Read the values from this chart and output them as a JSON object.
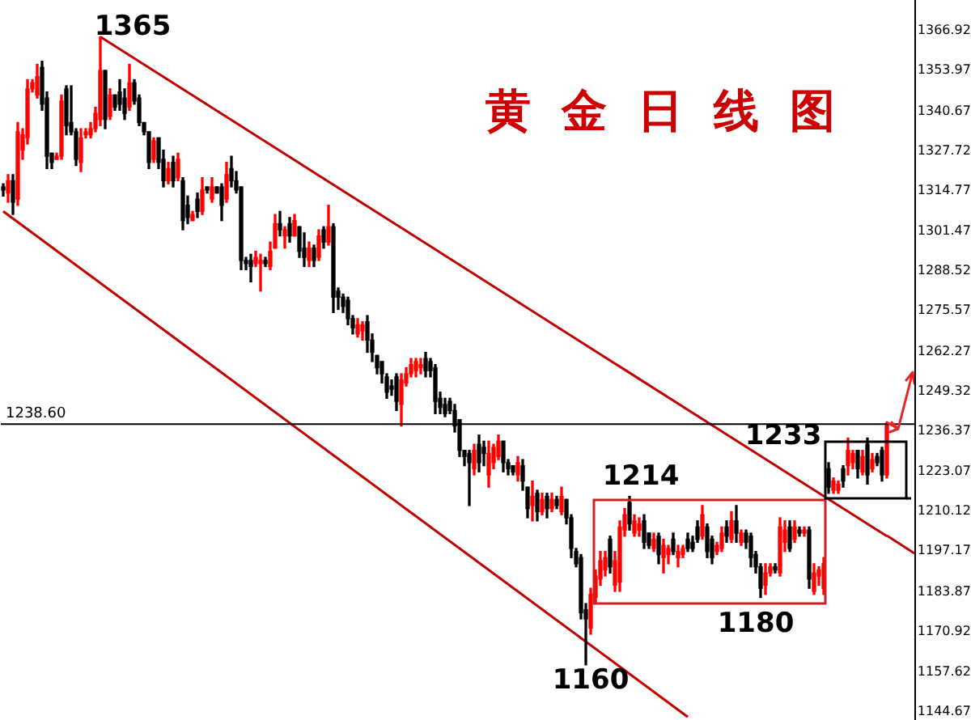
{
  "chart_data": {
    "type": "candlestick",
    "title": "黄金日线图",
    "categories": [
      null,
      null,
      null,
      null,
      null,
      null,
      null,
      null,
      null,
      null,
      null,
      null,
      null,
      null,
      null,
      null,
      null,
      null,
      null,
      null,
      null,
      null,
      null,
      null,
      null,
      null,
      null,
      null,
      null,
      null,
      null,
      null,
      null,
      null,
      null,
      null,
      null,
      null,
      null,
      null,
      null,
      null,
      null,
      null,
      null,
      null,
      null,
      null,
      null,
      null,
      null,
      null,
      null,
      null,
      null,
      null,
      null,
      null,
      null,
      null,
      null,
      null,
      null,
      null,
      null,
      null,
      null,
      null,
      null,
      null,
      null,
      null,
      null,
      null,
      null,
      null,
      null,
      null,
      null,
      null,
      null,
      null,
      null,
      null,
      null,
      null,
      null,
      null,
      null,
      null,
      null,
      null,
      null,
      null,
      null,
      null,
      null,
      null,
      null,
      null,
      null,
      null,
      null,
      null,
      null,
      null,
      null,
      null,
      null,
      null,
      null,
      null,
      null,
      null,
      null,
      null,
      null,
      null,
      null,
      null,
      null,
      null,
      null,
      null,
      null,
      null,
      null,
      null,
      null,
      null,
      null,
      null,
      null,
      null,
      null,
      null,
      null,
      null,
      null,
      null,
      null,
      null,
      null,
      null,
      null,
      null,
      null,
      null,
      null,
      null,
      null,
      null,
      null,
      null,
      null,
      null,
      null,
      null,
      null,
      null,
      null,
      null,
      null,
      null,
      null,
      null,
      null,
      null,
      null,
      null,
      null,
      null,
      null,
      null,
      null,
      null,
      null,
      null,
      null,
      null,
      null,
      null,
      null
    ],
    "ohlc": [
      [
        1316,
        1317,
        1313,
        1315
      ],
      [
        1314,
        1320,
        1311,
        1318
      ],
      [
        1318,
        1320,
        1307,
        1311
      ],
      [
        1312,
        1337,
        1310,
        1334
      ],
      [
        1328,
        1335,
        1325,
        1333
      ],
      [
        1332,
        1351,
        1330,
        1348
      ],
      [
        1348,
        1351,
        1347,
        1350
      ],
      [
        1346,
        1356,
        1345,
        1352
      ],
      [
        1355,
        1357,
        1341,
        1343
      ],
      [
        1345,
        1347,
        1322,
        1326
      ],
      [
        1327,
        1327,
        1322,
        1324
      ],
      [
        1325,
        1327,
        1325,
        1326
      ],
      [
        1326,
        1346,
        1325,
        1344
      ],
      [
        1348,
        1349,
        1333,
        1336
      ],
      [
        1337,
        1349,
        1333,
        1334
      ],
      [
        1334,
        1335,
        1323,
        1325
      ],
      [
        1324,
        1335,
        1321,
        1332
      ],
      [
        1333,
        1335,
        1332,
        1334
      ],
      [
        1333,
        1337,
        1332,
        1335
      ],
      [
        1335,
        1342,
        1334,
        1340
      ],
      [
        1338,
        1365,
        1336,
        1354
      ],
      [
        1354,
        1354,
        1335,
        1338
      ],
      [
        1339,
        1348,
        1338,
        1346
      ],
      [
        1346,
        1346,
        1341,
        1342
      ],
      [
        1347,
        1351,
        1341,
        1343
      ],
      [
        1345,
        1348,
        1338,
        1340
      ],
      [
        1342,
        1356,
        1341,
        1350
      ],
      [
        1350,
        1351,
        1343,
        1344
      ],
      [
        1345,
        1346,
        1336,
        1337
      ],
      [
        1337,
        1337,
        1333,
        1334
      ],
      [
        1334,
        1334,
        1322,
        1324
      ],
      [
        1325,
        1332,
        1324,
        1331
      ],
      [
        1332,
        1332,
        1322,
        1324
      ],
      [
        1325,
        1328,
        1316,
        1318
      ],
      [
        1318,
        1324,
        1317,
        1322
      ],
      [
        1324,
        1326,
        1316,
        1318
      ],
      [
        1319,
        1327,
        1318,
        1325
      ],
      [
        1318,
        1319,
        1302,
        1305
      ],
      [
        1310,
        1313,
        1304,
        1306
      ],
      [
        1305,
        1308,
        1305,
        1307
      ],
      [
        1312,
        1314,
        1306,
        1308
      ],
      [
        1308,
        1319,
        1307,
        1315
      ],
      [
        1316,
        1316,
        1314,
        1315
      ],
      [
        1312,
        1319,
        1311,
        1316
      ],
      [
        1316,
        1316,
        1314,
        1314
      ],
      [
        1316,
        1317,
        1305,
        1310
      ],
      [
        1312,
        1324,
        1311,
        1320
      ],
      [
        1322,
        1326,
        1316,
        1318
      ],
      [
        1318,
        1321,
        1314,
        1315
      ],
      [
        1316,
        1316,
        1289,
        1292
      ],
      [
        1292,
        1293,
        1289,
        1291
      ],
      [
        1292,
        1294,
        1285,
        1290
      ],
      [
        1291,
        1295,
        1290,
        1293
      ],
      [
        1291,
        1294,
        1282,
        1292
      ],
      [
        1292,
        1293,
        1290,
        1291
      ],
      [
        1290,
        1298,
        1289,
        1295
      ],
      [
        1296,
        1307,
        1296,
        1304
      ],
      [
        1304,
        1308,
        1300,
        1302
      ],
      [
        1300,
        1303,
        1296,
        1302
      ],
      [
        1304,
        1306,
        1298,
        1300
      ],
      [
        1300,
        1307,
        1300,
        1305
      ],
      [
        1303,
        1303,
        1293,
        1295
      ],
      [
        1296,
        1301,
        1290,
        1293
      ],
      [
        1292,
        1298,
        1290,
        1296
      ],
      [
        1296,
        1297,
        1290,
        1292
      ],
      [
        1293,
        1302,
        1292,
        1300
      ],
      [
        1302,
        1303,
        1296,
        1298
      ],
      [
        1298,
        1310,
        1297,
        1303
      ],
      [
        1303,
        1304,
        1275,
        1280
      ],
      [
        1282,
        1283,
        1276,
        1280
      ],
      [
        1280,
        1281,
        1275,
        1277
      ],
      [
        1279,
        1280,
        1271,
        1273
      ],
      [
        1273,
        1274,
        1268,
        1270
      ],
      [
        1268,
        1273,
        1267,
        1271
      ],
      [
        1269,
        1272,
        1266,
        1271
      ],
      [
        1272,
        1274,
        1262,
        1266
      ],
      [
        1266,
        1268,
        1259,
        1262
      ],
      [
        1261,
        1261,
        1255,
        1257
      ],
      [
        1259,
        1259,
        1252,
        1255
      ],
      [
        1254,
        1255,
        1247,
        1249
      ],
      [
        1251,
        1253,
        1248,
        1250
      ],
      [
        1254,
        1255,
        1243,
        1246
      ],
      [
        1245,
        1255,
        1238,
        1253
      ],
      [
        1252,
        1257,
        1251,
        1255
      ],
      [
        1255,
        1260,
        1254,
        1258
      ],
      [
        1256,
        1260,
        1254,
        1259
      ],
      [
        1257,
        1260,
        1255,
        1258
      ],
      [
        1260,
        1262,
        1254,
        1256
      ],
      [
        1259,
        1260,
        1254,
        1256
      ],
      [
        1257,
        1258,
        1242,
        1246
      ],
      [
        1247,
        1249,
        1242,
        1244
      ],
      [
        1245,
        1247,
        1241,
        1242
      ],
      [
        1246,
        1247,
        1242,
        1243
      ],
      [
        1243,
        1245,
        1236,
        1238
      ],
      [
        1240,
        1240,
        1228,
        1230
      ],
      [
        1230,
        1230,
        1225,
        1228
      ],
      [
        1229,
        1230,
        1212,
        1226
      ],
      [
        1224,
        1232,
        1222,
        1230
      ],
      [
        1232,
        1235,
        1223,
        1226
      ],
      [
        1231,
        1233,
        1225,
        1229
      ],
      [
        1222,
        1233,
        1218,
        1229
      ],
      [
        1226,
        1232,
        1224,
        1231
      ],
      [
        1228,
        1235,
        1227,
        1233
      ],
      [
        1233,
        1233,
        1223,
        1226
      ],
      [
        1226,
        1227,
        1222,
        1224
      ],
      [
        1225,
        1225,
        1222,
        1223
      ],
      [
        1222,
        1228,
        1220,
        1226
      ],
      [
        1225,
        1227,
        1217,
        1220
      ],
      [
        1218,
        1218,
        1208,
        1211
      ],
      [
        1212,
        1220,
        1207,
        1215
      ],
      [
        1216,
        1217,
        1207,
        1210
      ],
      [
        1210,
        1216,
        1209,
        1214
      ],
      [
        1215,
        1216,
        1208,
        1211
      ],
      [
        1211,
        1216,
        1210,
        1214
      ],
      [
        1214,
        1215,
        1211,
        1212
      ],
      [
        1210,
        1218,
        1209,
        1215
      ],
      [
        1214,
        1214,
        1206,
        1208
      ],
      [
        1208,
        1209,
        1195,
        1198
      ],
      [
        1197,
        1198,
        1192,
        1193
      ],
      [
        1195,
        1196,
        1175,
        1177
      ],
      [
        1178,
        1180,
        1160,
        1175
      ],
      [
        1172,
        1185,
        1170,
        1183
      ],
      [
        1182,
        1191,
        1180,
        1189
      ],
      [
        1188,
        1197,
        1186,
        1194
      ],
      [
        1191,
        1197,
        1189,
        1195
      ],
      [
        1201,
        1202,
        1190,
        1192
      ],
      [
        1186,
        1197,
        1184,
        1194
      ],
      [
        1187,
        1207,
        1184,
        1205
      ],
      [
        1204,
        1211,
        1202,
        1209
      ],
      [
        1213,
        1215,
        1204,
        1206
      ],
      [
        1203,
        1209,
        1202,
        1207
      ],
      [
        1204,
        1208,
        1202,
        1206
      ],
      [
        1207,
        1209,
        1198,
        1200
      ],
      [
        1203,
        1203,
        1198,
        1199
      ],
      [
        1198,
        1203,
        1197,
        1201
      ],
      [
        1202,
        1203,
        1193,
        1196
      ],
      [
        1195,
        1201,
        1190,
        1199
      ],
      [
        1196,
        1199,
        1193,
        1198
      ],
      [
        1201,
        1203,
        1196,
        1197
      ],
      [
        1195,
        1199,
        1192,
        1197
      ],
      [
        1196,
        1199,
        1195,
        1198
      ],
      [
        1201,
        1203,
        1197,
        1198
      ],
      [
        1200,
        1202,
        1197,
        1198
      ],
      [
        1205,
        1207,
        1200,
        1201
      ],
      [
        1202,
        1212,
        1201,
        1209
      ],
      [
        1205,
        1206,
        1195,
        1197
      ],
      [
        1201,
        1202,
        1193,
        1195
      ],
      [
        1197,
        1200,
        1196,
        1199
      ],
      [
        1198,
        1205,
        1197,
        1203
      ],
      [
        1205,
        1207,
        1200,
        1202
      ],
      [
        1201,
        1210,
        1200,
        1207
      ],
      [
        1207,
        1212,
        1200,
        1203
      ],
      [
        1200,
        1204,
        1199,
        1203
      ],
      [
        1203,
        1204,
        1198,
        1200
      ],
      [
        1202,
        1203,
        1192,
        1195
      ],
      [
        1196,
        1197,
        1190,
        1192
      ],
      [
        1192,
        1193,
        1182,
        1185
      ],
      [
        1186,
        1193,
        1183,
        1190
      ],
      [
        1190,
        1193,
        1189,
        1192
      ],
      [
        1192,
        1193,
        1190,
        1191
      ],
      [
        1190,
        1208,
        1189,
        1205
      ],
      [
        1200,
        1207,
        1197,
        1204
      ],
      [
        1205,
        1207,
        1197,
        1198
      ],
      [
        1201,
        1207,
        1200,
        1205
      ],
      [
        1204,
        1205,
        1202,
        1203
      ],
      [
        1203,
        1205,
        1202,
        1204
      ],
      [
        1204,
        1205,
        1185,
        1188
      ],
      [
        1184,
        1193,
        1183,
        1190
      ],
      [
        1189,
        1192,
        1186,
        1191
      ],
      [
        1185,
        1195,
        1183,
        1193
      ],
      [
        1224,
        1226,
        1216,
        1218
      ],
      [
        1217,
        1221,
        1216,
        1220
      ],
      [
        1217,
        1220,
        1216,
        1219
      ],
      [
        1224,
        1225,
        1218,
        1220
      ],
      [
        1225,
        1234,
        1222,
        1230
      ],
      [
        1226,
        1230,
        1224,
        1229
      ],
      [
        1230,
        1230,
        1221,
        1224
      ],
      [
        1223,
        1230,
        1222,
        1228
      ],
      [
        1232,
        1234,
        1219,
        1222
      ],
      [
        1224,
        1229,
        1223,
        1227
      ],
      [
        1228,
        1229,
        1225,
        1226
      ],
      [
        1230,
        1231,
        1220,
        1222
      ],
      [
        1222,
        1239,
        1221,
        1238.6
      ]
    ],
    "colors": [
      "#000000",
      "#ff0000",
      "#000000",
      "#ff0000",
      "#ff0000",
      "#ff0000",
      "#ff0000",
      "#ff0000",
      "#000000",
      "#000000",
      "#000000",
      "#ff0000",
      "#ff0000",
      "#000000",
      "#000000",
      "#000000",
      "#ff0000",
      "#ff0000",
      "#ff0000",
      "#ff0000",
      "#ff0000",
      "#000000",
      "#ff0000",
      "#000000",
      "#000000",
      "#000000",
      "#ff0000",
      "#000000",
      "#000000",
      "#000000",
      "#000000",
      "#ff0000",
      "#000000",
      "#000000",
      "#ff0000",
      "#000000",
      "#ff0000",
      "#000000",
      "#000000",
      "#ff0000",
      "#000000",
      "#ff0000",
      "#000000",
      "#ff0000",
      "#000000",
      "#000000",
      "#ff0000",
      "#000000",
      "#000000",
      "#000000",
      "#000000",
      "#000000",
      "#ff0000",
      "#ff0000",
      "#000000",
      "#ff0000",
      "#ff0000",
      "#000000",
      "#ff0000",
      "#000000",
      "#ff0000",
      "#000000",
      "#000000",
      "#ff0000",
      "#000000",
      "#ff0000",
      "#000000",
      "#ff0000",
      "#000000",
      "#000000",
      "#000000",
      "#000000",
      "#000000",
      "#ff0000",
      "#ff0000",
      "#000000",
      "#000000",
      "#000000",
      "#000000",
      "#000000",
      "#000000",
      "#000000",
      "#ff0000",
      "#ff0000",
      "#ff0000",
      "#ff0000",
      "#ff0000",
      "#000000",
      "#000000",
      "#000000",
      "#000000",
      "#000000",
      "#000000",
      "#000000",
      "#000000",
      "#000000",
      "#000000",
      "#ff0000",
      "#000000",
      "#000000",
      "#ff0000",
      "#ff0000",
      "#ff0000",
      "#000000",
      "#000000",
      "#000000",
      "#ff0000",
      "#000000",
      "#000000",
      "#ff0000",
      "#000000",
      "#ff0000",
      "#000000",
      "#ff0000",
      "#000000",
      "#ff0000",
      "#000000",
      "#000000",
      "#000000",
      "#000000",
      "#000000",
      "#ff0000",
      "#ff0000",
      "#ff0000",
      "#ff0000",
      "#000000",
      "#ff0000",
      "#ff0000",
      "#ff0000",
      "#000000",
      "#ff0000",
      "#ff0000",
      "#000000",
      "#000000",
      "#ff0000",
      "#000000",
      "#ff0000",
      "#ff0000",
      "#000000",
      "#ff0000",
      "#ff0000",
      "#000000",
      "#000000",
      "#000000",
      "#ff0000",
      "#000000",
      "#000000",
      "#ff0000",
      "#ff0000",
      "#000000",
      "#ff0000",
      "#000000",
      "#ff0000",
      "#000000",
      "#000000",
      "#000000",
      "#000000",
      "#ff0000",
      "#ff0000",
      "#000000",
      "#ff0000",
      "#ff0000",
      "#000000",
      "#ff0000",
      "#000000",
      "#ff0000",
      "#000000",
      "#ff0000",
      "#ff0000",
      "#ff0000",
      "#000000",
      "#ff0000",
      "#ff0000",
      "#000000",
      "#ff0000",
      "#ff0000",
      "#000000",
      "#ff0000",
      "#000000",
      "#ff0000",
      "#000000",
      "#000000",
      "#ff0000"
    ],
    "series": [
      {
        "type": "line",
        "color": "#c00000",
        "values": [
          null,
          null,
          null,
          null,
          null,
          null,
          null,
          null,
          null,
          null,
          null,
          null,
          null,
          null,
          null,
          null,
          null,
          null,
          null,
          null,
          1365,
          null,
          null,
          null,
          null,
          null,
          null,
          null,
          null,
          null,
          null,
          null,
          null,
          null,
          null,
          null,
          null,
          null,
          null,
          null,
          null,
          null,
          null,
          null,
          null,
          null,
          null,
          null,
          null,
          null,
          null,
          null,
          null,
          null,
          null,
          null,
          null,
          null,
          null,
          null,
          null,
          null,
          null,
          null,
          null,
          null,
          null,
          null,
          null,
          null,
          null,
          null,
          null,
          null,
          null,
          null,
          null,
          null,
          null,
          null,
          null,
          null,
          null,
          null,
          null,
          null,
          null,
          null,
          null,
          null,
          null,
          null,
          null,
          null,
          null,
          null,
          null,
          null,
          null,
          null,
          null,
          null,
          null,
          null,
          null,
          null,
          null,
          null,
          null,
          null,
          null,
          null,
          null,
          null,
          null,
          null,
          null,
          null,
          null,
          null,
          null,
          null,
          null,
          null,
          null,
          null,
          null,
          null,
          null,
          null,
          null,
          null,
          null,
          null,
          null,
          null,
          null,
          null,
          null,
          null,
          null,
          null,
          null,
          null,
          null,
          null,
          null,
          null,
          null,
          null,
          null,
          null,
          null,
          null,
          null,
          null,
          null,
          null,
          null,
          null,
          null,
          null,
          null,
          null,
          null,
          null,
          null,
          null,
          null,
          null,
          null,
          null,
          null,
          null,
          null,
          null,
          null,
          null,
          null,
          null,
          null,
          null,
          1202
        ]
      },
      {
        "type": "line",
        "color": "#c00000",
        "values": [
          1308,
          null,
          null,
          null,
          null,
          null,
          null,
          null,
          null,
          null,
          null,
          null,
          null,
          null,
          null,
          null,
          null,
          null,
          null,
          null,
          null,
          null,
          null,
          null,
          null,
          null,
          null,
          null,
          null,
          null,
          null,
          null,
          null,
          null,
          null,
          null,
          null,
          null,
          null,
          null,
          null,
          null,
          null,
          null,
          null,
          null,
          null,
          null,
          null,
          null,
          null,
          null,
          null,
          null,
          null,
          null,
          null,
          null,
          null,
          null,
          null,
          null,
          null,
          null,
          null,
          null,
          null,
          null,
          null,
          null,
          null,
          null,
          null,
          null,
          null,
          null,
          null,
          null,
          null,
          null,
          null,
          null,
          null,
          null,
          null,
          null,
          null,
          null,
          null,
          null,
          null,
          null,
          null,
          null,
          null,
          null,
          null,
          null,
          null,
          null,
          null,
          null,
          null,
          null,
          null,
          null,
          null,
          null,
          null,
          null,
          null,
          null,
          null,
          null,
          null,
          null,
          null,
          null,
          null,
          null,
          null,
          null,
          null,
          null,
          null,
          null,
          null,
          null,
          null,
          null,
          null,
          null,
          null,
          null,
          null,
          null,
          null,
          null,
          null,
          null,
          null,
          1143,
          null,
          null,
          null,
          null,
          null,
          null,
          null,
          null,
          null,
          null,
          null,
          null,
          null,
          null,
          null,
          null,
          null,
          null,
          null,
          null,
          null,
          null,
          null,
          null,
          null,
          null,
          null,
          null,
          null,
          null,
          null,
          null,
          null,
          null,
          null,
          null,
          null,
          null,
          null,
          null,
          null
        ]
      }
    ],
    "ref_lines": [
      {
        "axis": "y",
        "value": 1238.6,
        "label": "1238.60",
        "color": "#000000"
      }
    ],
    "annotations": [
      "1365",
      "1214",
      "1180",
      "1160",
      "1233"
    ],
    "ylim": [
      1142,
      1377
    ],
    "yticks": [
      1144.67,
      1157.62,
      1170.92,
      1183.87,
      1197.17,
      1210.12,
      1223.07,
      1236.37,
      1249.32,
      1262.27,
      1275.57,
      1288.52,
      1301.47,
      1314.77,
      1327.72,
      1340.67,
      1353.97,
      1366.92
    ],
    "tick_labels": "y",
    "grid": false,
    "legend": false
  }
}
